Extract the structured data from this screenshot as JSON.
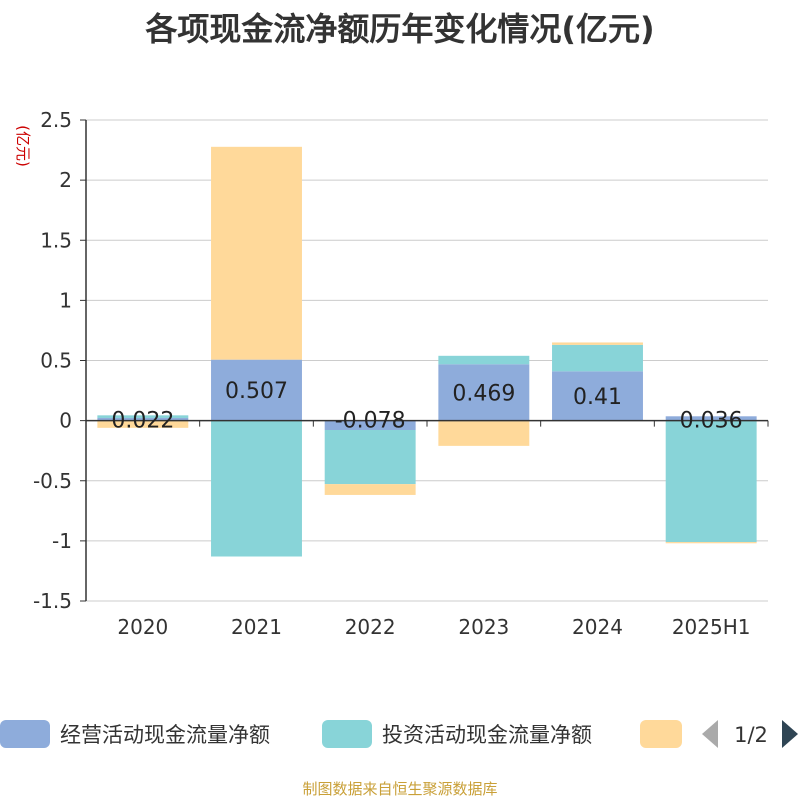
{
  "chart_data": {
    "type": "bar",
    "stacked": true,
    "title": "各项现金流净额历年变化情况(亿元)",
    "ylabel": "(亿元)",
    "xlabel": "",
    "categories": [
      "2020",
      "2021",
      "2022",
      "2023",
      "2024",
      "2025H1"
    ],
    "ylim": [
      -1.5,
      2.5
    ],
    "yticks": [
      2.5,
      2,
      1.5,
      1,
      0.5,
      0,
      -0.5,
      -1,
      -1.5
    ],
    "ytick_labels": [
      "2.5",
      "2",
      "1.5",
      "1",
      "0.5",
      "0",
      "-0.5",
      "-1",
      "-1.5"
    ],
    "grid": true,
    "legend_position": "bottom",
    "series": [
      {
        "name": "经营活动现金流量净额",
        "color": "#8eacdb",
        "values": [
          0.022,
          0.507,
          -0.078,
          0.469,
          0.41,
          0.036
        ],
        "labels": [
          "0.022",
          "0.507",
          "-0.078",
          "0.469",
          "0.41",
          "0.036"
        ]
      },
      {
        "name": "投资活动现金流量净额",
        "color": "#88d4d8",
        "values": [
          0.022,
          -1.13,
          -0.45,
          0.07,
          0.22,
          -1.01
        ]
      },
      {
        "name": "",
        "color": "#ffd99a",
        "values": [
          -0.06,
          1.77,
          -0.09,
          -0.21,
          0.02,
          -0.01
        ]
      }
    ]
  },
  "legend": {
    "page": "1/2"
  },
  "source": "制图数据来自恒生聚源数据库"
}
